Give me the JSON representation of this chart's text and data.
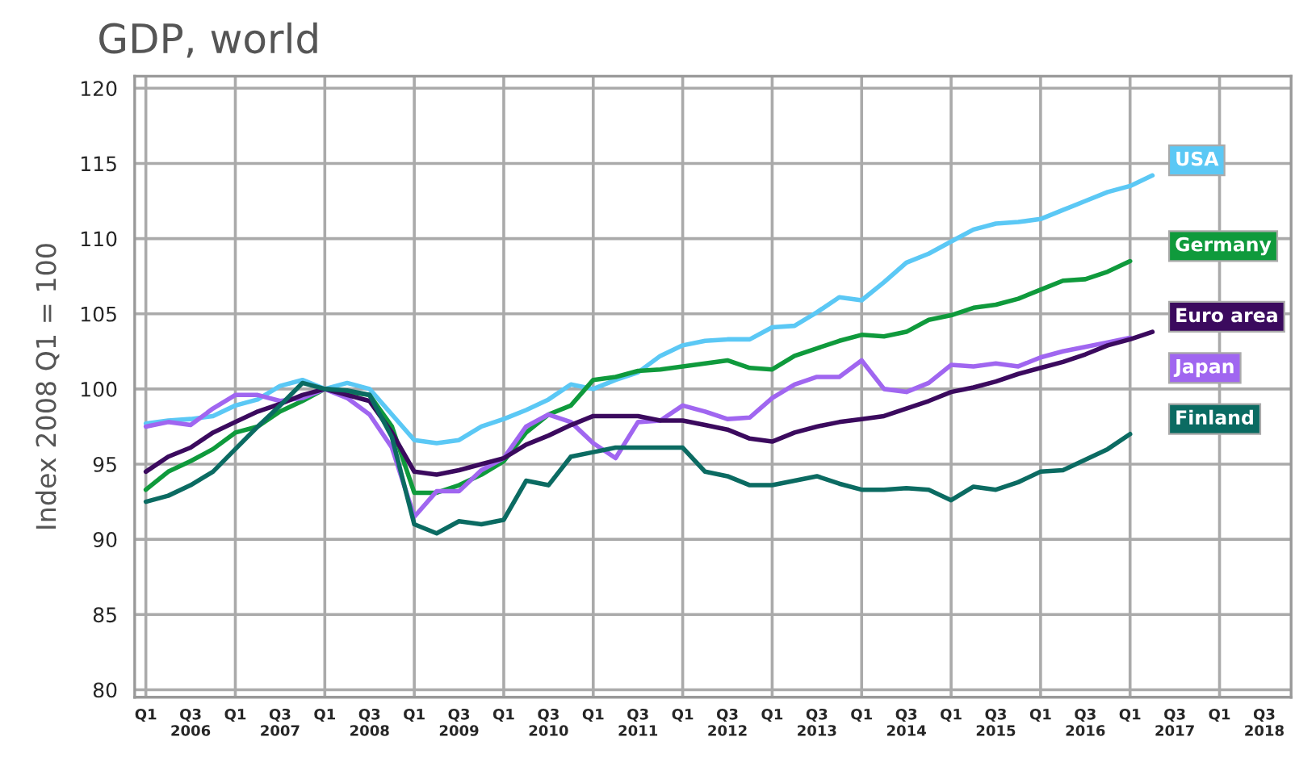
{
  "chart_data": {
    "type": "line",
    "title": "GDP, world",
    "ylabel": "Index 2008 Q1 = 100",
    "categories": [
      "Q1",
      null,
      "Q3\n2006",
      null,
      "Q1",
      null,
      "Q3\n2007",
      null,
      "Q1",
      null,
      "Q3\n2008",
      null,
      "Q1",
      null,
      "Q3\n2009",
      null,
      "Q1",
      null,
      "Q3\n2010",
      null,
      "Q1",
      null,
      "Q3\n2011",
      null,
      "Q1",
      null,
      "Q3\n2012",
      null,
      "Q1",
      null,
      "Q3\n2013",
      null,
      "Q1",
      null,
      "Q3\n2014",
      null,
      "Q1",
      null,
      "Q3\n2015",
      null,
      "Q1",
      null,
      "Q3\n2016",
      null,
      "Q1",
      null,
      "Q3\n2017",
      null,
      "Q1",
      null,
      "Q3\n2018"
    ],
    "series": [
      {
        "name": "USA",
        "color": "#5bc8f5",
        "values": [
          97.7,
          97.9,
          98.0,
          98.2,
          98.9,
          99.3,
          100.2,
          100.6,
          100.0,
          100.4,
          100.0,
          98.3,
          96.6,
          96.4,
          96.6,
          97.5,
          98.0,
          98.6,
          99.3,
          100.3,
          100.0,
          100.6,
          101.1,
          102.2,
          102.9,
          103.2,
          103.3,
          103.3,
          104.1,
          104.2,
          105.1,
          106.1,
          105.9,
          107.1,
          108.4,
          109.0,
          109.8,
          110.6,
          111.0,
          111.1,
          111.3,
          111.9,
          112.5,
          113.1,
          113.5,
          114.2,
          null,
          null,
          null,
          null,
          null
        ]
      },
      {
        "name": "Germany",
        "color": "#0f9a3c",
        "values": [
          93.3,
          94.5,
          95.2,
          96.0,
          97.1,
          97.5,
          98.5,
          99.2,
          100.0,
          99.8,
          99.6,
          97.5,
          93.1,
          93.1,
          93.6,
          94.3,
          95.2,
          97.1,
          98.3,
          98.9,
          100.6,
          100.8,
          101.2,
          101.3,
          101.5,
          101.7,
          101.9,
          101.4,
          101.3,
          102.2,
          102.7,
          103.2,
          103.6,
          103.5,
          103.8,
          104.6,
          104.9,
          105.4,
          105.6,
          106.0,
          106.6,
          107.2,
          107.3,
          107.8,
          108.5,
          null,
          null,
          null,
          null,
          null,
          null
        ]
      },
      {
        "name": "Japan",
        "color": "#a066f0",
        "values": [
          97.5,
          97.8,
          97.6,
          98.7,
          99.6,
          99.6,
          99.2,
          99.4,
          100.0,
          99.4,
          98.3,
          96.1,
          91.5,
          93.2,
          93.2,
          94.6,
          95.4,
          97.5,
          98.3,
          97.8,
          96.4,
          95.4,
          97.8,
          97.9,
          98.9,
          98.5,
          98.0,
          98.1,
          99.4,
          100.3,
          100.8,
          100.8,
          101.9,
          100.0,
          99.8,
          100.4,
          101.6,
          101.5,
          101.7,
          101.5,
          102.1,
          102.5,
          102.8,
          103.1,
          103.4,
          null,
          null,
          null,
          null,
          null,
          null
        ]
      },
      {
        "name": "Euro area",
        "color": "#3b0a5e",
        "values": [
          94.5,
          95.5,
          96.1,
          97.1,
          97.8,
          98.5,
          99.0,
          99.6,
          100.0,
          99.6,
          99.2,
          97.1,
          94.5,
          94.3,
          94.6,
          95.0,
          95.4,
          96.3,
          96.9,
          97.6,
          98.2,
          98.2,
          98.2,
          97.9,
          97.9,
          97.6,
          97.3,
          96.7,
          96.5,
          97.1,
          97.5,
          97.8,
          98.0,
          98.2,
          98.7,
          99.2,
          99.8,
          100.1,
          100.5,
          101.0,
          101.4,
          101.8,
          102.3,
          102.9,
          103.3,
          103.8,
          null,
          null,
          null,
          null,
          null
        ]
      },
      {
        "name": "Finland",
        "color": "#0b6b62",
        "values": [
          92.5,
          92.9,
          93.6,
          94.5,
          96.0,
          97.5,
          98.9,
          100.4,
          100.0,
          99.9,
          99.6,
          96.8,
          91.0,
          90.4,
          91.2,
          91.0,
          91.3,
          93.9,
          93.6,
          95.5,
          95.8,
          96.1,
          96.1,
          96.1,
          96.1,
          94.5,
          94.2,
          93.6,
          93.6,
          93.9,
          94.2,
          93.7,
          93.3,
          93.3,
          93.4,
          93.3,
          92.6,
          93.5,
          93.3,
          93.8,
          94.5,
          94.6,
          95.3,
          96.0,
          97.0,
          null,
          null,
          null,
          null,
          null,
          null
        ]
      }
    ],
    "ylim": [
      79.5,
      120.8
    ],
    "yticks": [
      80,
      85,
      90,
      95,
      100,
      105,
      110,
      115,
      120
    ],
    "grid": true,
    "legend": false,
    "marker": "none",
    "line_style": "solid"
  }
}
